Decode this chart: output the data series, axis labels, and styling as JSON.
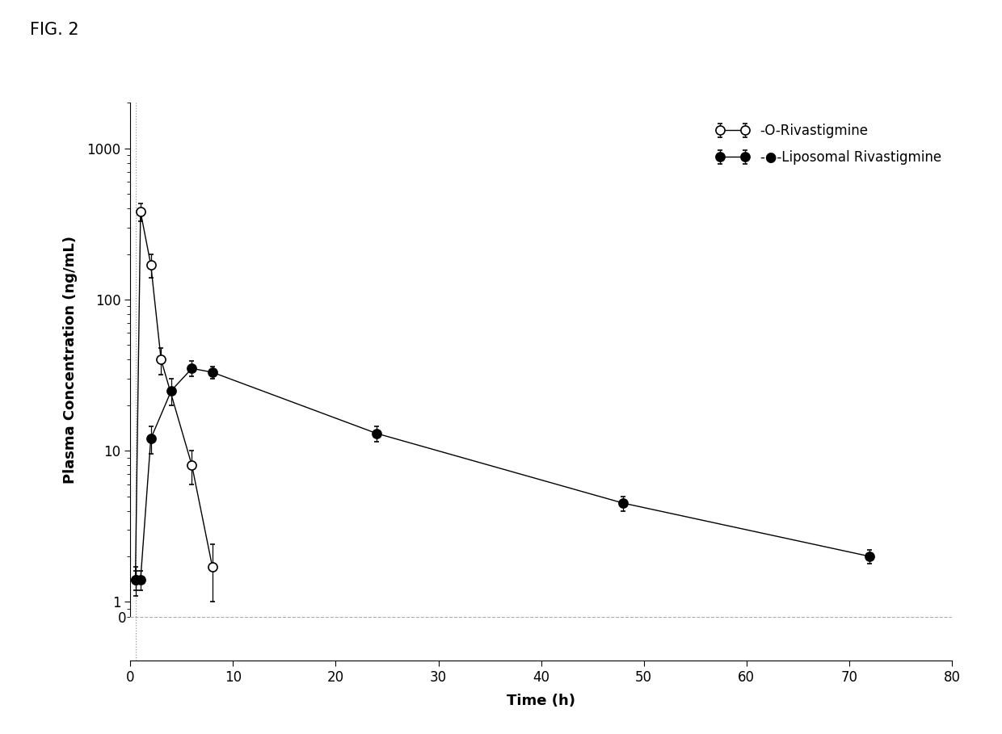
{
  "fig_title": "FIG. 2",
  "xlabel": "Time (h)",
  "ylabel": "Plasma Concentration (ng/mL)",
  "rivastigmine": {
    "label": "-O-Rivastigmine",
    "x": [
      0.5,
      1,
      2,
      3,
      6,
      8
    ],
    "y": [
      1.4,
      380,
      170,
      40,
      8,
      1.7
    ],
    "yerr_lo": [
      0.3,
      50,
      30,
      8,
      2,
      0.7
    ],
    "yerr_hi": [
      0.3,
      50,
      30,
      8,
      2,
      0.7
    ]
  },
  "liposomal": {
    "label": "-●-Liposomal Rivastigmine",
    "x": [
      0.5,
      1,
      2,
      4,
      6,
      8,
      24,
      48,
      72
    ],
    "y": [
      1.4,
      1.4,
      12,
      25,
      35,
      33,
      13,
      4.5,
      2.0
    ],
    "yerr_lo": [
      0.2,
      0.2,
      2.5,
      5,
      4,
      3,
      1.5,
      0.5,
      0.2
    ],
    "yerr_hi": [
      0.2,
      0.2,
      2.5,
      5,
      4,
      3,
      1.5,
      0.5,
      0.2
    ]
  },
  "xlim": [
    0,
    80
  ],
  "xticks": [
    0,
    10,
    20,
    30,
    40,
    50,
    60,
    70,
    80
  ],
  "yticks_log": [
    1,
    10,
    100,
    1000
  ],
  "ylim_log": [
    0.8,
    2000
  ],
  "background_color": "#ffffff",
  "line_color": "#000000",
  "dotted_line_color": "#aaaaaa"
}
